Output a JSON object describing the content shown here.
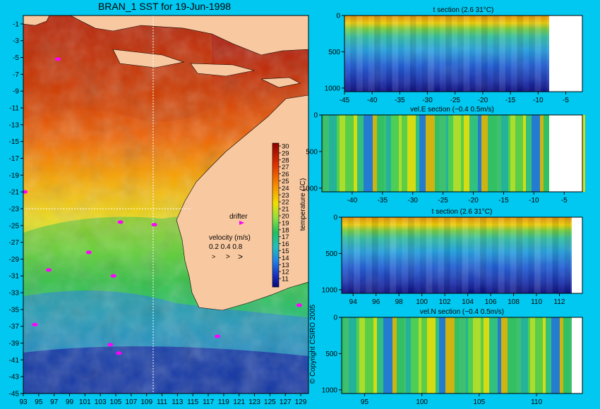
{
  "chart_data": [
    {
      "type": "heatmap",
      "title": "BRAN_1 SST for 19-Jun-1998",
      "x_ticks": [
        "93",
        "95",
        "97",
        "99",
        "101",
        "103",
        "105",
        "107",
        "109",
        "111",
        "113",
        "115",
        "117",
        "119",
        "121",
        "123",
        "125",
        "127",
        "129"
      ],
      "y_ticks": [
        "-1",
        "-3",
        "-5",
        "-7",
        "-9",
        "-11",
        "-13",
        "-15",
        "-17",
        "-19",
        "-21",
        "-23",
        "-25",
        "-27",
        "-29",
        "-31",
        "-33",
        "-35",
        "-37",
        "-39",
        "-41",
        "-43",
        "-45"
      ],
      "xlim": [
        93,
        130
      ],
      "ylim": [
        -45,
        0
      ],
      "section_lines": {
        "lat": -24,
        "lon": 110.5
      },
      "colorbar": {
        "label": "temperature (°C)",
        "ticks": [
          "30",
          "29",
          "28",
          "27",
          "26",
          "25",
          "24",
          "23",
          "22",
          "21",
          "20",
          "19",
          "18",
          "17",
          "16",
          "15",
          "14",
          "13",
          "12",
          "11"
        ],
        "range": [
          10,
          31
        ]
      },
      "legend": {
        "drifter_label": "drifter",
        "velocity_label": "velocity (m/s)",
        "velocity_scale": "0.2 0.4 0.8"
      },
      "copyright": "© Copyright CSIRO 2005",
      "drifters": [
        {
          "lon": 97.5,
          "lat": -5.2
        },
        {
          "lon": 101.5,
          "lat": -28.2
        },
        {
          "lon": 96.3,
          "lat": -30.3
        },
        {
          "lon": 104.7,
          "lat": -31.0
        },
        {
          "lon": 104.3,
          "lat": -39.2
        },
        {
          "lon": 105.4,
          "lat": -40.2
        },
        {
          "lon": 94.5,
          "lat": -36.8
        },
        {
          "lon": 118.2,
          "lat": -38.2
        },
        {
          "lon": 110.0,
          "lat": -24.9
        },
        {
          "lon": 105.6,
          "lat": -24.6
        },
        {
          "lon": 93.2,
          "lat": -21.0
        },
        {
          "lon": 128.8,
          "lat": -34.5
        }
      ]
    },
    {
      "type": "heatmap",
      "title": "t section (2.6      31°C)",
      "x_ticks": [
        "-45",
        "-40",
        "-35",
        "-30",
        "-25",
        "-20",
        "-15",
        "-10",
        "-5"
      ],
      "y_ticks": [
        "0",
        "500",
        "1000"
      ],
      "xlim": [
        -45,
        -2
      ],
      "ylim": [
        1050,
        0
      ]
    },
    {
      "type": "heatmap",
      "title": "vel.E section (−0.4      0.5m/s)",
      "x_ticks": [
        "-40",
        "-35",
        "-30",
        "-25",
        "-20",
        "-15",
        "-10",
        "-5"
      ],
      "y_ticks": [
        "0",
        "500",
        "1000"
      ],
      "xlim": [
        -45,
        -2
      ],
      "ylim": [
        1050,
        0
      ]
    },
    {
      "type": "heatmap",
      "title": "t section (2.6      31°C)",
      "x_ticks": [
        "94",
        "96",
        "98",
        "100",
        "102",
        "104",
        "106",
        "108",
        "110",
        "112"
      ],
      "y_ticks": [
        "0",
        "500",
        "1000"
      ],
      "xlim": [
        93,
        114
      ],
      "ylim": [
        1050,
        0
      ]
    },
    {
      "type": "heatmap",
      "title": "vel.N section (−0.4      0.5m/s)",
      "x_ticks": [
        "95",
        "100",
        "105",
        "110"
      ],
      "y_ticks": [
        "0",
        "500",
        "1000"
      ],
      "xlim": [
        93,
        114
      ],
      "ylim": [
        1050,
        0
      ]
    }
  ]
}
